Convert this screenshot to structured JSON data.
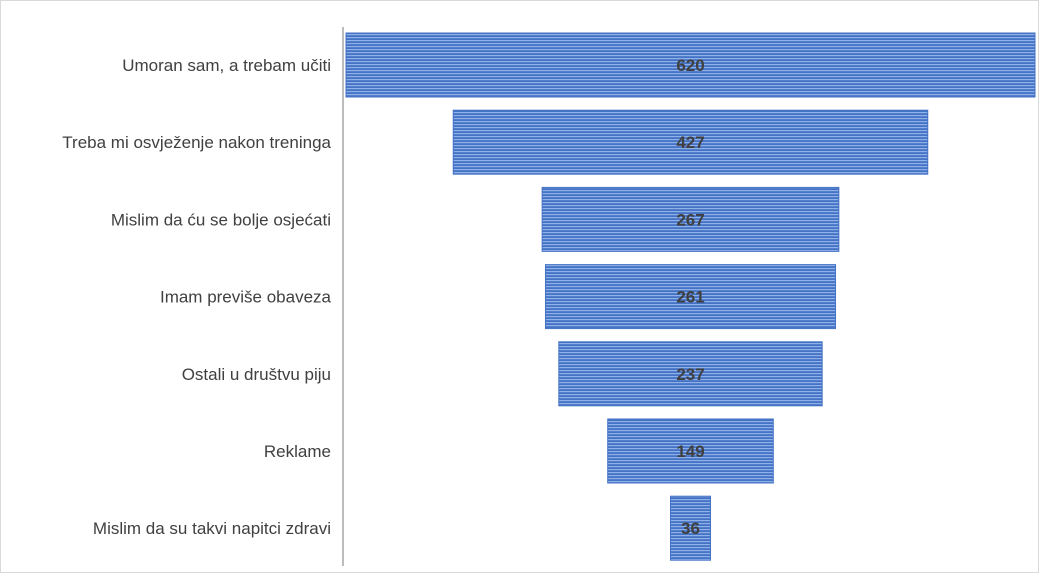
{
  "chart_data": {
    "type": "bar",
    "subtype": "funnel",
    "orientation": "horizontal",
    "categories": [
      "Umoran sam, a trebam učiti",
      "Treba mi osvježenje nakon treninga",
      "Mislim da ću se bolje osjećati",
      "Imam previše obaveza",
      "Ostali u društvu piju",
      "Reklame",
      "Mislim da su takvi napitci zdravi"
    ],
    "values": [
      620,
      427,
      267,
      261,
      237,
      149,
      36
    ],
    "value_labels": [
      "620",
      "427",
      "267",
      "261",
      "237",
      "149",
      "36"
    ],
    "title": "",
    "xlabel": "",
    "ylabel": "",
    "grid": false,
    "legend": "none",
    "bar_color": "#4472C4",
    "bar_stripe_color": "#8fb1e8",
    "label_color": "#404040",
    "axis_color": "#a6a6a6"
  }
}
